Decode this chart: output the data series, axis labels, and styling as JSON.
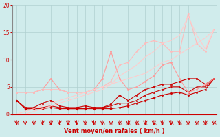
{
  "x": [
    0,
    1,
    2,
    3,
    4,
    5,
    6,
    7,
    8,
    9,
    10,
    11,
    12,
    13,
    14,
    15,
    16,
    17,
    18,
    19,
    20,
    21,
    22,
    23
  ],
  "lines": [
    {
      "y": [
        2.5,
        1.0,
        1.0,
        1.0,
        1.2,
        1.0,
        1.0,
        1.0,
        1.0,
        1.0,
        1.0,
        1.0,
        1.2,
        1.5,
        2.0,
        2.5,
        3.0,
        3.5,
        3.8,
        4.0,
        3.5,
        4.0,
        4.5,
        6.5
      ],
      "color": "#cc0000",
      "lw": 0.8,
      "marker": "D",
      "ms": 1.5
    },
    {
      "y": [
        2.5,
        1.0,
        1.0,
        1.2,
        1.5,
        1.2,
        1.0,
        1.0,
        1.0,
        1.2,
        1.2,
        1.5,
        2.0,
        2.0,
        2.5,
        3.5,
        4.0,
        4.5,
        5.0,
        5.0,
        4.0,
        5.0,
        5.0,
        6.5
      ],
      "color": "#cc0000",
      "lw": 0.8,
      "marker": "^",
      "ms": 1.5
    },
    {
      "y": [
        2.5,
        1.2,
        1.2,
        2.0,
        2.5,
        1.5,
        1.2,
        1.2,
        1.5,
        1.2,
        1.2,
        1.8,
        3.5,
        2.5,
        3.5,
        4.5,
        5.0,
        5.5,
        5.5,
        6.0,
        6.5,
        6.5,
        5.5,
        6.5
      ],
      "color": "#cc0000",
      "lw": 0.8,
      "marker": "s",
      "ms": 1.5
    },
    {
      "y": [
        4.0,
        4.0,
        4.0,
        4.5,
        6.5,
        4.5,
        4.0,
        4.0,
        4.0,
        4.5,
        6.5,
        11.5,
        6.5,
        4.5,
        5.0,
        6.0,
        7.0,
        9.0,
        9.5,
        6.5,
        4.0,
        4.5,
        5.5,
        6.5
      ],
      "color": "#ff9999",
      "lw": 0.8,
      "marker": "o",
      "ms": 1.5
    },
    {
      "y": [
        4.0,
        4.0,
        4.0,
        4.5,
        4.5,
        4.5,
        4.0,
        4.0,
        4.0,
        4.5,
        5.0,
        6.0,
        9.0,
        9.5,
        11.5,
        13.0,
        13.5,
        13.0,
        11.5,
        11.5,
        18.5,
        13.0,
        11.5,
        15.5
      ],
      "color": "#ffbbbb",
      "lw": 0.8,
      "marker": "o",
      "ms": 1.5
    },
    {
      "y": [
        0.0,
        0.5,
        1.0,
        1.5,
        2.0,
        2.5,
        3.0,
        3.5,
        4.0,
        4.5,
        5.0,
        5.5,
        6.0,
        6.5,
        7.0,
        7.5,
        8.5,
        9.5,
        10.0,
        11.0,
        12.0,
        13.0,
        14.0,
        15.5
      ],
      "color": "#ffcccc",
      "lw": 0.8,
      "marker": "none",
      "ms": 0
    },
    {
      "y": [
        0.0,
        0.0,
        0.5,
        1.0,
        1.5,
        2.0,
        2.5,
        3.0,
        3.5,
        4.0,
        4.5,
        5.5,
        7.0,
        8.0,
        9.0,
        10.5,
        11.5,
        13.0,
        13.5,
        14.5,
        18.0,
        14.5,
        12.0,
        15.5
      ],
      "color": "#ffcccc",
      "lw": 0.8,
      "marker": "none",
      "ms": 0
    }
  ],
  "xlabel": "Vent moyen/en rafales ( km/h )",
  "ylim": [
    0,
    20
  ],
  "xlim": [
    0,
    23
  ],
  "yticks": [
    0,
    5,
    10,
    15,
    20
  ],
  "xticks": [
    0,
    1,
    2,
    3,
    4,
    5,
    6,
    7,
    8,
    9,
    10,
    11,
    12,
    13,
    14,
    15,
    16,
    17,
    18,
    19,
    20,
    21,
    22,
    23
  ],
  "bg_color": "#d0ecec",
  "grid_color": "#b0d0d0",
  "tick_color": "#cc0000",
  "label_color": "#cc0000",
  "arrow_color": "#cc0000"
}
